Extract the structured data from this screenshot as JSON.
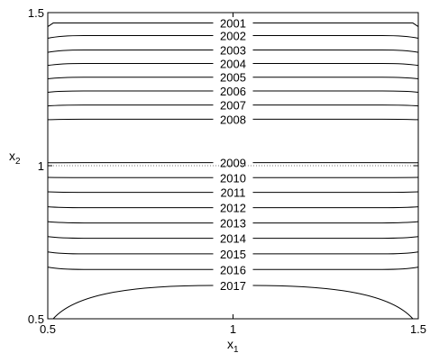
{
  "chart_data": {
    "type": "contour",
    "title": "",
    "xlabel": "x",
    "xlabel_sub": "1",
    "ylabel": "x",
    "ylabel_sub": "2",
    "xlim": [
      0.5,
      1.5
    ],
    "ylim": [
      0.5,
      1.5
    ],
    "xticks": [
      0.5,
      1,
      1.5
    ],
    "xtick_labels": [
      "0.5",
      "1",
      "1.5"
    ],
    "yticks": [
      0.5,
      1,
      1.5
    ],
    "ytick_labels": [
      "0.5",
      "1",
      "1.5"
    ],
    "grid": false,
    "reference_lines": [
      {
        "orientation": "horizontal",
        "y": 1,
        "style": "dotted"
      }
    ],
    "levels": [
      {
        "label": "2001",
        "y": 1.466
      },
      {
        "label": "2002",
        "y": 1.425
      },
      {
        "label": "2003",
        "y": 1.378
      },
      {
        "label": "2004",
        "y": 1.334
      },
      {
        "label": "2005",
        "y": 1.289
      },
      {
        "label": "2006",
        "y": 1.244
      },
      {
        "label": "2007",
        "y": 1.198
      },
      {
        "label": "2008",
        "y": 1.152
      },
      {
        "label": "2009",
        "y": 1.01
      },
      {
        "label": "2010",
        "y": 0.961
      },
      {
        "label": "2011",
        "y": 0.913
      },
      {
        "label": "2012",
        "y": 0.863
      },
      {
        "label": "2013",
        "y": 0.813
      },
      {
        "label": "2014",
        "y": 0.763
      },
      {
        "label": "2015",
        "y": 0.712
      },
      {
        "label": "2016",
        "y": 0.661
      },
      {
        "label": "2017",
        "y": 0.609
      }
    ]
  }
}
